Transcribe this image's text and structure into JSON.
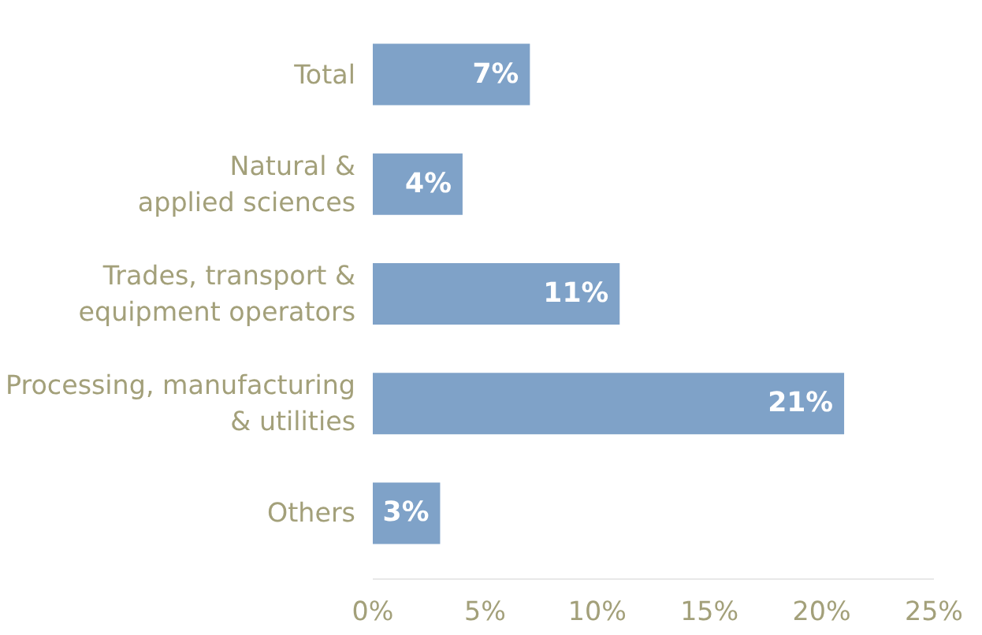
{
  "chart_data": {
    "type": "bar",
    "orientation": "horizontal",
    "categories": [
      "Total",
      "Natural &\napplied sciences",
      "Trades, transport &\nequipment operators",
      "Processing, manufacturing\n& utilities",
      "Others"
    ],
    "values": [
      7,
      4,
      11,
      21,
      3
    ],
    "color": "#7fa2c8",
    "value_labels": [
      "7%",
      "4%",
      "11%",
      "21%",
      "3%"
    ],
    "xlim": [
      0,
      25
    ],
    "xticks": [
      {
        "value": 0,
        "label": "0%"
      },
      {
        "value": 5,
        "label": "5%"
      },
      {
        "value": 10,
        "label": "10%"
      },
      {
        "value": 15,
        "label": "15%"
      },
      {
        "value": 20,
        "label": "20%"
      },
      {
        "value": 25,
        "label": "25%"
      }
    ],
    "grid": false
  }
}
